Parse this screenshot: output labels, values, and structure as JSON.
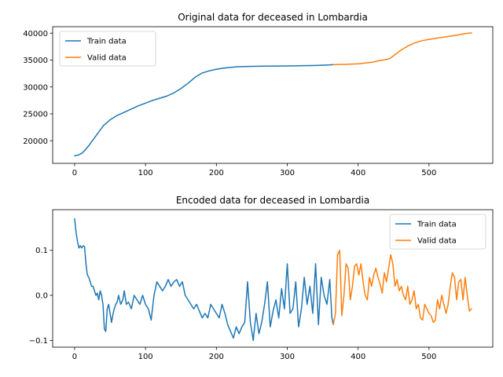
{
  "chart_data": [
    {
      "type": "line",
      "title": "Original data for deceased in Lombardia",
      "xlabel": "",
      "ylabel": "",
      "xlim": [
        -31,
        590
      ],
      "ylim": [
        15800,
        41200
      ],
      "xticks": [
        0,
        100,
        200,
        300,
        400,
        500
      ],
      "yticks": [
        20000,
        25000,
        30000,
        35000,
        40000
      ],
      "legend_position": "upper-left",
      "series": [
        {
          "name": "Train data",
          "color": "#1f77b4",
          "x": [
            0,
            5,
            10,
            15,
            20,
            25,
            30,
            35,
            40,
            42,
            45,
            50,
            55,
            60,
            70,
            80,
            90,
            100,
            110,
            120,
            130,
            140,
            150,
            160,
            170,
            180,
            190,
            200,
            210,
            220,
            230,
            240,
            250,
            260,
            280,
            300,
            320,
            340,
            360,
            365
          ],
          "y": [
            17200,
            17350,
            17650,
            18300,
            19100,
            20000,
            20900,
            21800,
            22700,
            23000,
            23300,
            23900,
            24300,
            24700,
            25300,
            25900,
            26500,
            27000,
            27500,
            27900,
            28300,
            28900,
            29700,
            30700,
            31800,
            32600,
            33000,
            33300,
            33500,
            33650,
            33750,
            33800,
            33820,
            33850,
            33880,
            33900,
            33950,
            34000,
            34100,
            34150
          ]
        },
        {
          "name": "Valid data",
          "color": "#ff7f0e",
          "x": [
            365,
            380,
            400,
            420,
            430,
            440,
            445,
            450,
            460,
            470,
            480,
            490,
            500,
            510,
            520,
            530,
            540,
            550,
            560
          ],
          "y": [
            34150,
            34200,
            34300,
            34600,
            34900,
            35100,
            35300,
            35800,
            36800,
            37600,
            38200,
            38600,
            38850,
            39050,
            39250,
            39450,
            39650,
            39900,
            40050
          ]
        }
      ]
    },
    {
      "type": "line",
      "title": "Encoded data for deceased in Lombardia",
      "xlabel": "",
      "ylabel": "",
      "xlim": [
        -31,
        590
      ],
      "ylim": [
        -0.115,
        0.19
      ],
      "xticks": [
        0,
        100,
        200,
        300,
        400,
        500
      ],
      "yticks": [
        -0.1,
        0.0,
        0.1
      ],
      "ytick_labels": [
        "−0.1",
        "0.0",
        "0.1"
      ],
      "legend_position": "upper-right",
      "series": [
        {
          "name": "Train data",
          "color": "#1f77b4",
          "x": [
            0,
            2,
            4,
            6,
            8,
            10,
            12,
            14,
            16,
            18,
            20,
            22,
            24,
            26,
            28,
            30,
            32,
            34,
            36,
            38,
            40,
            42,
            44,
            46,
            48,
            50,
            52,
            55,
            58,
            60,
            62,
            65,
            68,
            70,
            73,
            76,
            80,
            84,
            88,
            92,
            96,
            100,
            104,
            108,
            112,
            116,
            120,
            124,
            128,
            132,
            136,
            140,
            144,
            148,
            152,
            156,
            160,
            164,
            168,
            172,
            176,
            180,
            184,
            188,
            192,
            196,
            200,
            204,
            208,
            212,
            216,
            220,
            224,
            228,
            232,
            236,
            240,
            244,
            248,
            252,
            256,
            260,
            264,
            268,
            272,
            276,
            280,
            284,
            288,
            292,
            296,
            300,
            304,
            308,
            312,
            316,
            320,
            324,
            328,
            332,
            336,
            340,
            344,
            348,
            352,
            356,
            360,
            363,
            365
          ],
          "y": [
            0.17,
            0.14,
            0.12,
            0.105,
            0.11,
            0.105,
            0.11,
            0.108,
            0.07,
            0.045,
            0.04,
            0.03,
            0.02,
            0.02,
            0.01,
            0.0,
            0.005,
            -0.01,
            0.01,
            0.0,
            -0.02,
            -0.075,
            -0.08,
            -0.03,
            -0.02,
            -0.04,
            -0.06,
            -0.035,
            -0.02,
            -0.015,
            0.0,
            -0.02,
            -0.01,
            0.01,
            -0.02,
            -0.015,
            -0.03,
            0.0,
            -0.01,
            -0.02,
            0.0,
            -0.02,
            -0.03,
            -0.055,
            0.0,
            0.03,
            0.02,
            0.01,
            0.02,
            0.035,
            0.02,
            0.03,
            0.035,
            0.02,
            0.03,
            0.0,
            -0.01,
            -0.02,
            -0.03,
            -0.02,
            -0.035,
            -0.05,
            -0.04,
            -0.05,
            -0.02,
            -0.03,
            -0.04,
            -0.05,
            -0.02,
            -0.04,
            -0.065,
            -0.08,
            -0.095,
            -0.07,
            -0.085,
            -0.07,
            -0.06,
            0.03,
            -0.06,
            -0.1,
            -0.04,
            -0.085,
            -0.06,
            -0.02,
            0.03,
            -0.07,
            -0.035,
            -0.01,
            -0.05,
            0.015,
            -0.03,
            0.07,
            -0.04,
            -0.03,
            0.03,
            -0.07,
            -0.03,
            0.04,
            -0.02,
            0.02,
            -0.04,
            0.07,
            -0.065,
            0.04,
            0.0,
            -0.02,
            0.035,
            -0.05,
            -0.065
          ]
        },
        {
          "name": "Valid data",
          "color": "#ff7f0e",
          "x": [
            365,
            368,
            371,
            374,
            377,
            380,
            383,
            386,
            389,
            392,
            395,
            398,
            401,
            404,
            407,
            410,
            413,
            416,
            419,
            422,
            425,
            428,
            431,
            434,
            437,
            440,
            443,
            446,
            449,
            452,
            455,
            458,
            461,
            464,
            467,
            470,
            473,
            476,
            479,
            482,
            485,
            488,
            491,
            494,
            497,
            500,
            503,
            506,
            509,
            512,
            515,
            518,
            521,
            524,
            527,
            530,
            533,
            536,
            539,
            542,
            545,
            548,
            551,
            554,
            557,
            560
          ],
          "y": [
            -0.065,
            -0.04,
            0.09,
            0.1,
            -0.045,
            0.0,
            0.07,
            0.06,
            -0.01,
            0.02,
            0.065,
            0.07,
            0.045,
            0.07,
            0.03,
            0.0,
            -0.01,
            0.04,
            0.02,
            0.045,
            0.06,
            0.04,
            0.025,
            0.005,
            0.05,
            0.03,
            0.06,
            0.09,
            0.07,
            0.02,
            0.035,
            0.01,
            0.02,
            0.0,
            -0.01,
            0.02,
            -0.02,
            -0.01,
            0.01,
            -0.03,
            -0.02,
            -0.05,
            -0.055,
            -0.02,
            -0.03,
            -0.04,
            -0.045,
            -0.06,
            -0.055,
            -0.01,
            -0.03,
            0.0,
            -0.02,
            -0.04,
            -0.02,
            0.02,
            0.05,
            0.04,
            -0.01,
            0.03,
            0.035,
            -0.01,
            0.04,
            0.0,
            -0.035,
            -0.03
          ]
        }
      ]
    }
  ]
}
